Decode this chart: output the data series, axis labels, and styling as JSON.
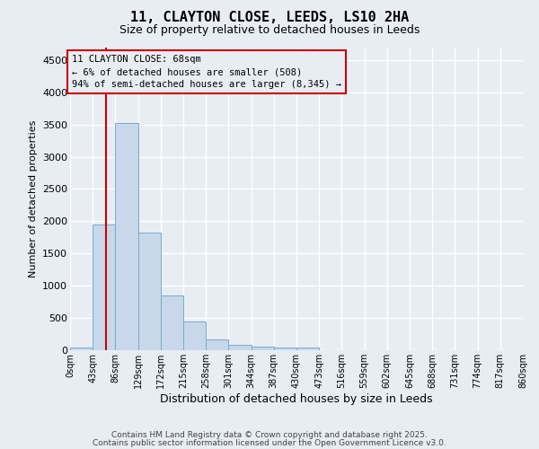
{
  "title": "11, CLAYTON CLOSE, LEEDS, LS10 2HA",
  "subtitle": "Size of property relative to detached houses in Leeds",
  "xlabel": "Distribution of detached houses by size in Leeds",
  "ylabel": "Number of detached properties",
  "bin_edges": [
    0,
    43,
    86,
    129,
    172,
    215,
    258,
    301,
    344,
    387,
    430,
    473,
    516,
    559,
    602,
    645,
    688,
    731,
    774,
    817,
    860
  ],
  "bar_heights": [
    40,
    1950,
    3520,
    1820,
    850,
    450,
    165,
    80,
    55,
    45,
    45,
    0,
    0,
    0,
    0,
    0,
    0,
    0,
    0,
    0
  ],
  "bar_color": "#c8d8ea",
  "bar_edgecolor": "#7aaac8",
  "bg_color": "#e8edf4",
  "grid_color": "#ffffff",
  "property_line_x": 68,
  "property_line_color": "#cc0000",
  "annotation_text": "11 CLAYTON CLOSE: 68sqm\n← 6% of detached houses are smaller (508)\n94% of semi-detached houses are larger (8,345) →",
  "annotation_box_color": "#cc0000",
  "ylim": [
    0,
    4700
  ],
  "yticks": [
    0,
    500,
    1000,
    1500,
    2000,
    2500,
    3000,
    3500,
    4000,
    4500
  ],
  "tick_labels": [
    "0sqm",
    "43sqm",
    "86sqm",
    "129sqm",
    "172sqm",
    "215sqm",
    "258sqm",
    "301sqm",
    "344sqm",
    "387sqm",
    "430sqm",
    "473sqm",
    "516sqm",
    "559sqm",
    "602sqm",
    "645sqm",
    "688sqm",
    "731sqm",
    "774sqm",
    "817sqm",
    "860sqm"
  ],
  "footer_line1": "Contains HM Land Registry data © Crown copyright and database right 2025.",
  "footer_line2": "Contains public sector information licensed under the Open Government Licence v3.0."
}
